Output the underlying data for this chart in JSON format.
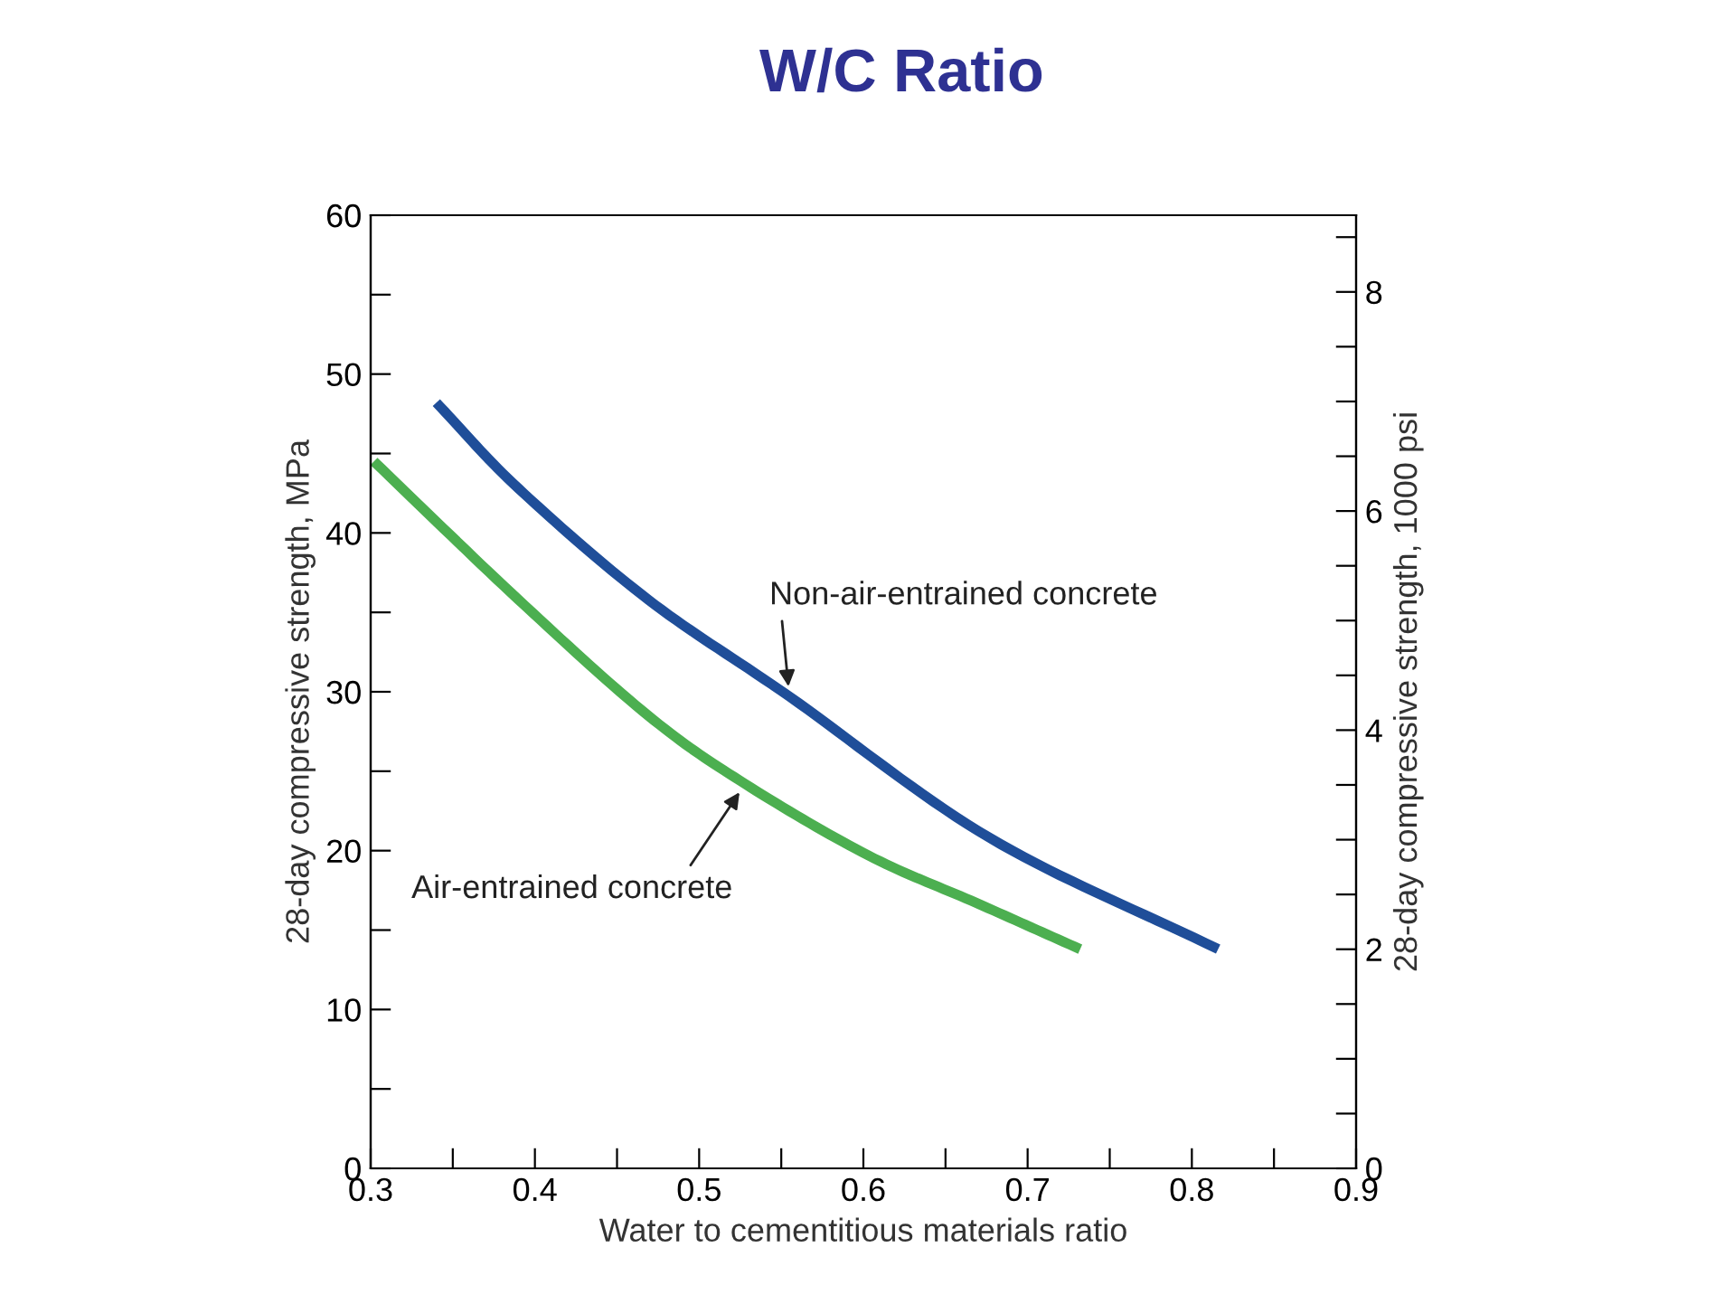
{
  "chart_data": {
    "type": "line",
    "title": "W/C Ratio",
    "xlabel": "Water to cementitious materials ratio",
    "ylabel": "28-day compressive strength, MPa",
    "y2label": "28-day compressive strength, 1000 psi",
    "series": [
      {
        "name": "Non-air-entrained concrete",
        "color": "#1f4e99",
        "x": [
          0.34,
          0.39,
          0.469,
          0.555,
          0.677,
          0.816
        ],
        "values": [
          48.2,
          42.8,
          35.8,
          29.7,
          20.8,
          13.8
        ]
      },
      {
        "name": "Air-entrained concrete",
        "color": "#4caf50",
        "x": [
          0.302,
          0.39,
          0.469,
          0.528,
          0.603,
          0.669,
          0.732
        ],
        "values": [
          44.5,
          35.8,
          28.5,
          24.2,
          19.7,
          16.7,
          13.8
        ]
      }
    ],
    "xlim": [
      0.3,
      0.9
    ],
    "xticks": [
      0.3,
      {
        "value": 0.35,
        "label": null
      },
      0.4,
      {
        "value": 0.45,
        "label": null
      },
      0.5,
      {
        "value": 0.55,
        "label": null
      },
      0.6,
      {
        "value": 0.65,
        "label": null
      },
      0.7,
      {
        "value": 0.75,
        "label": null
      },
      0.8,
      {
        "value": 0.85,
        "label": null
      },
      0.9
    ],
    "ylim": [
      0,
      60
    ],
    "yticks": [
      0,
      {
        "value": 5,
        "label": null
      },
      10,
      {
        "value": 15,
        "label": null
      },
      20,
      {
        "value": 25,
        "label": null
      },
      30,
      {
        "value": 35,
        "label": null
      },
      40,
      {
        "value": 45,
        "label": null
      },
      50,
      {
        "value": 55,
        "label": null
      },
      60
    ],
    "y2lim": [
      0,
      8.7
    ],
    "y2ticks": [
      0,
      {
        "value": 0.5,
        "label": null
      },
      {
        "value": 1,
        "label": null
      },
      {
        "value": 1.5,
        "label": null
      },
      2,
      {
        "value": 2.5,
        "label": null
      },
      {
        "value": 3,
        "label": null
      },
      {
        "value": 3.5,
        "label": null
      },
      4,
      {
        "value": 4.5,
        "label": null
      },
      {
        "value": 5,
        "label": null
      },
      {
        "value": 5.5,
        "label": null
      },
      6,
      {
        "value": 6.5,
        "label": null
      },
      {
        "value": 7,
        "label": null
      },
      {
        "value": 7.5,
        "label": null
      },
      8,
      {
        "value": 8.5,
        "label": null
      }
    ],
    "grid": false,
    "legend": false,
    "marker": "none",
    "line_style": "solid"
  }
}
